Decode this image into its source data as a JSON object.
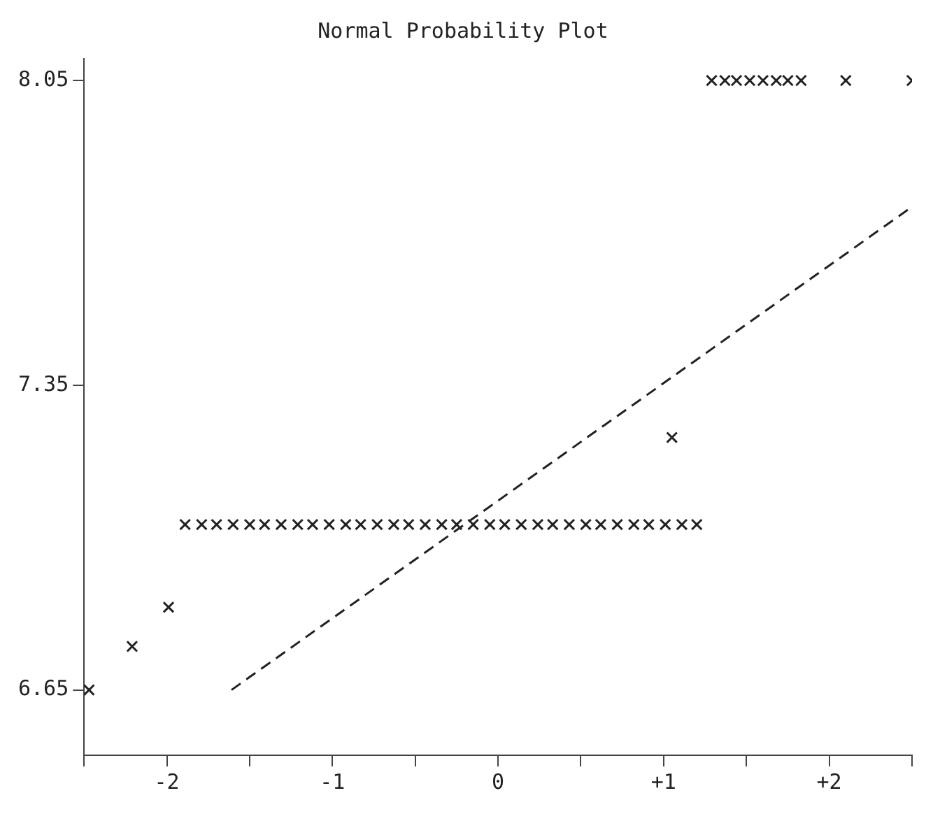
{
  "chart_data": {
    "type": "scatter",
    "title": "Normal Probability Plot",
    "xlim": [
      -2.5,
      2.5
    ],
    "xticks": [
      {
        "value": -2.5,
        "label": null
      },
      {
        "value": -2,
        "label": "-2"
      },
      {
        "value": -1.5,
        "label": null
      },
      {
        "value": -1,
        "label": "-1"
      },
      {
        "value": -0.5,
        "label": null
      },
      {
        "value": 0,
        "label": "0"
      },
      {
        "value": 0.5,
        "label": null
      },
      {
        "value": 1,
        "label": "+1"
      },
      {
        "value": 1.5,
        "label": null
      },
      {
        "value": 2,
        "label": "+2"
      },
      {
        "value": 2.5,
        "label": null
      }
    ],
    "ylim": [
      6.5,
      8.1
    ],
    "yticks": [
      6.65,
      7.35,
      8.05
    ],
    "grid": false,
    "legend": false,
    "series": [
      {
        "type": "scatter",
        "color": "#222222",
        "marker": "cross",
        "x": [
          -2.47,
          -2.21,
          -1.99,
          -1.89,
          -1.79,
          -1.7,
          -1.6,
          -1.5,
          -1.41,
          -1.31,
          -1.21,
          -1.12,
          -1.02,
          -0.92,
          -0.83,
          -0.73,
          -0.63,
          -0.54,
          -0.44,
          -0.34,
          -0.25,
          -0.15,
          -0.05,
          0.04,
          0.14,
          0.24,
          0.33,
          0.43,
          0.53,
          0.62,
          0.72,
          0.82,
          0.91,
          1.01,
          1.05,
          1.11,
          1.2,
          1.29,
          1.37,
          1.44,
          1.52,
          1.6,
          1.68,
          1.75,
          1.83,
          2.1,
          2.5
        ],
        "values": [
          6.65,
          6.75,
          6.84,
          7.03,
          7.03,
          7.03,
          7.03,
          7.03,
          7.03,
          7.03,
          7.03,
          7.03,
          7.03,
          7.03,
          7.03,
          7.03,
          7.03,
          7.03,
          7.03,
          7.03,
          7.03,
          7.03,
          7.03,
          7.03,
          7.03,
          7.03,
          7.03,
          7.03,
          7.03,
          7.03,
          7.03,
          7.03,
          7.03,
          7.03,
          7.23,
          7.03,
          7.03,
          8.05,
          8.05,
          8.05,
          8.05,
          8.05,
          8.05,
          8.05,
          8.05,
          8.05,
          8.05
        ]
      },
      {
        "type": "line",
        "color": "#222222",
        "marker": "none",
        "line_style": "dashed",
        "x": [
          -1.61,
          2.5
        ],
        "values": [
          6.65,
          7.76
        ]
      }
    ]
  }
}
